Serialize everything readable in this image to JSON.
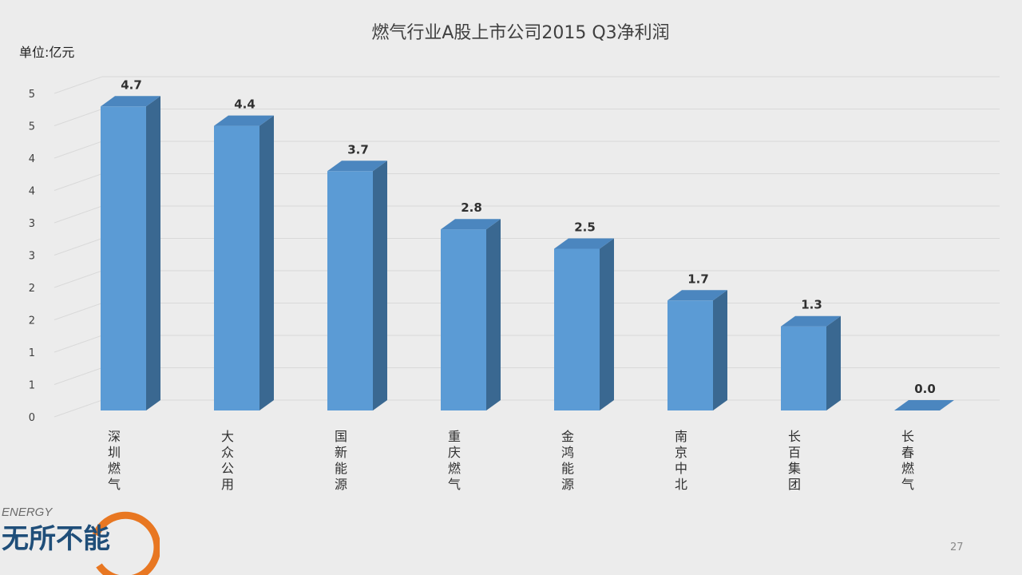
{
  "unit_label": "单位:亿元",
  "page_number": "27",
  "logo": {
    "top_text": "ENERGY",
    "main_text": "无所不能"
  },
  "colors": {
    "bar_front": "#5b9bd5",
    "bar_side": "#3a6891",
    "bar_top": "#4b86bf",
    "grid": "#d9d9d9",
    "logo_blue": "#1f4e79",
    "logo_orange": "#e87722"
  },
  "chart_data": {
    "type": "bar",
    "title": "燃气行业A股上市公司2015 Q3净利润",
    "categories": [
      "深圳燃气",
      "大众公用",
      "国新能源",
      "重庆燃气",
      "金鸿能源",
      "南京中北",
      "长百集团",
      "长春燃气"
    ],
    "values": [
      4.7,
      4.4,
      3.7,
      2.8,
      2.5,
      1.7,
      1.3,
      0.0
    ],
    "value_labels": [
      "4.7",
      "4.4",
      "3.7",
      "2.8",
      "2.5",
      "1.7",
      "1.3",
      "0.0"
    ],
    "ylim": [
      0,
      5
    ],
    "grid_step": 0.5,
    "ytick_labels": [
      "0",
      "1",
      "1",
      "2",
      "2",
      "3",
      "3",
      "4",
      "4",
      "5",
      "5"
    ],
    "grid": true,
    "style": "3d-column"
  }
}
